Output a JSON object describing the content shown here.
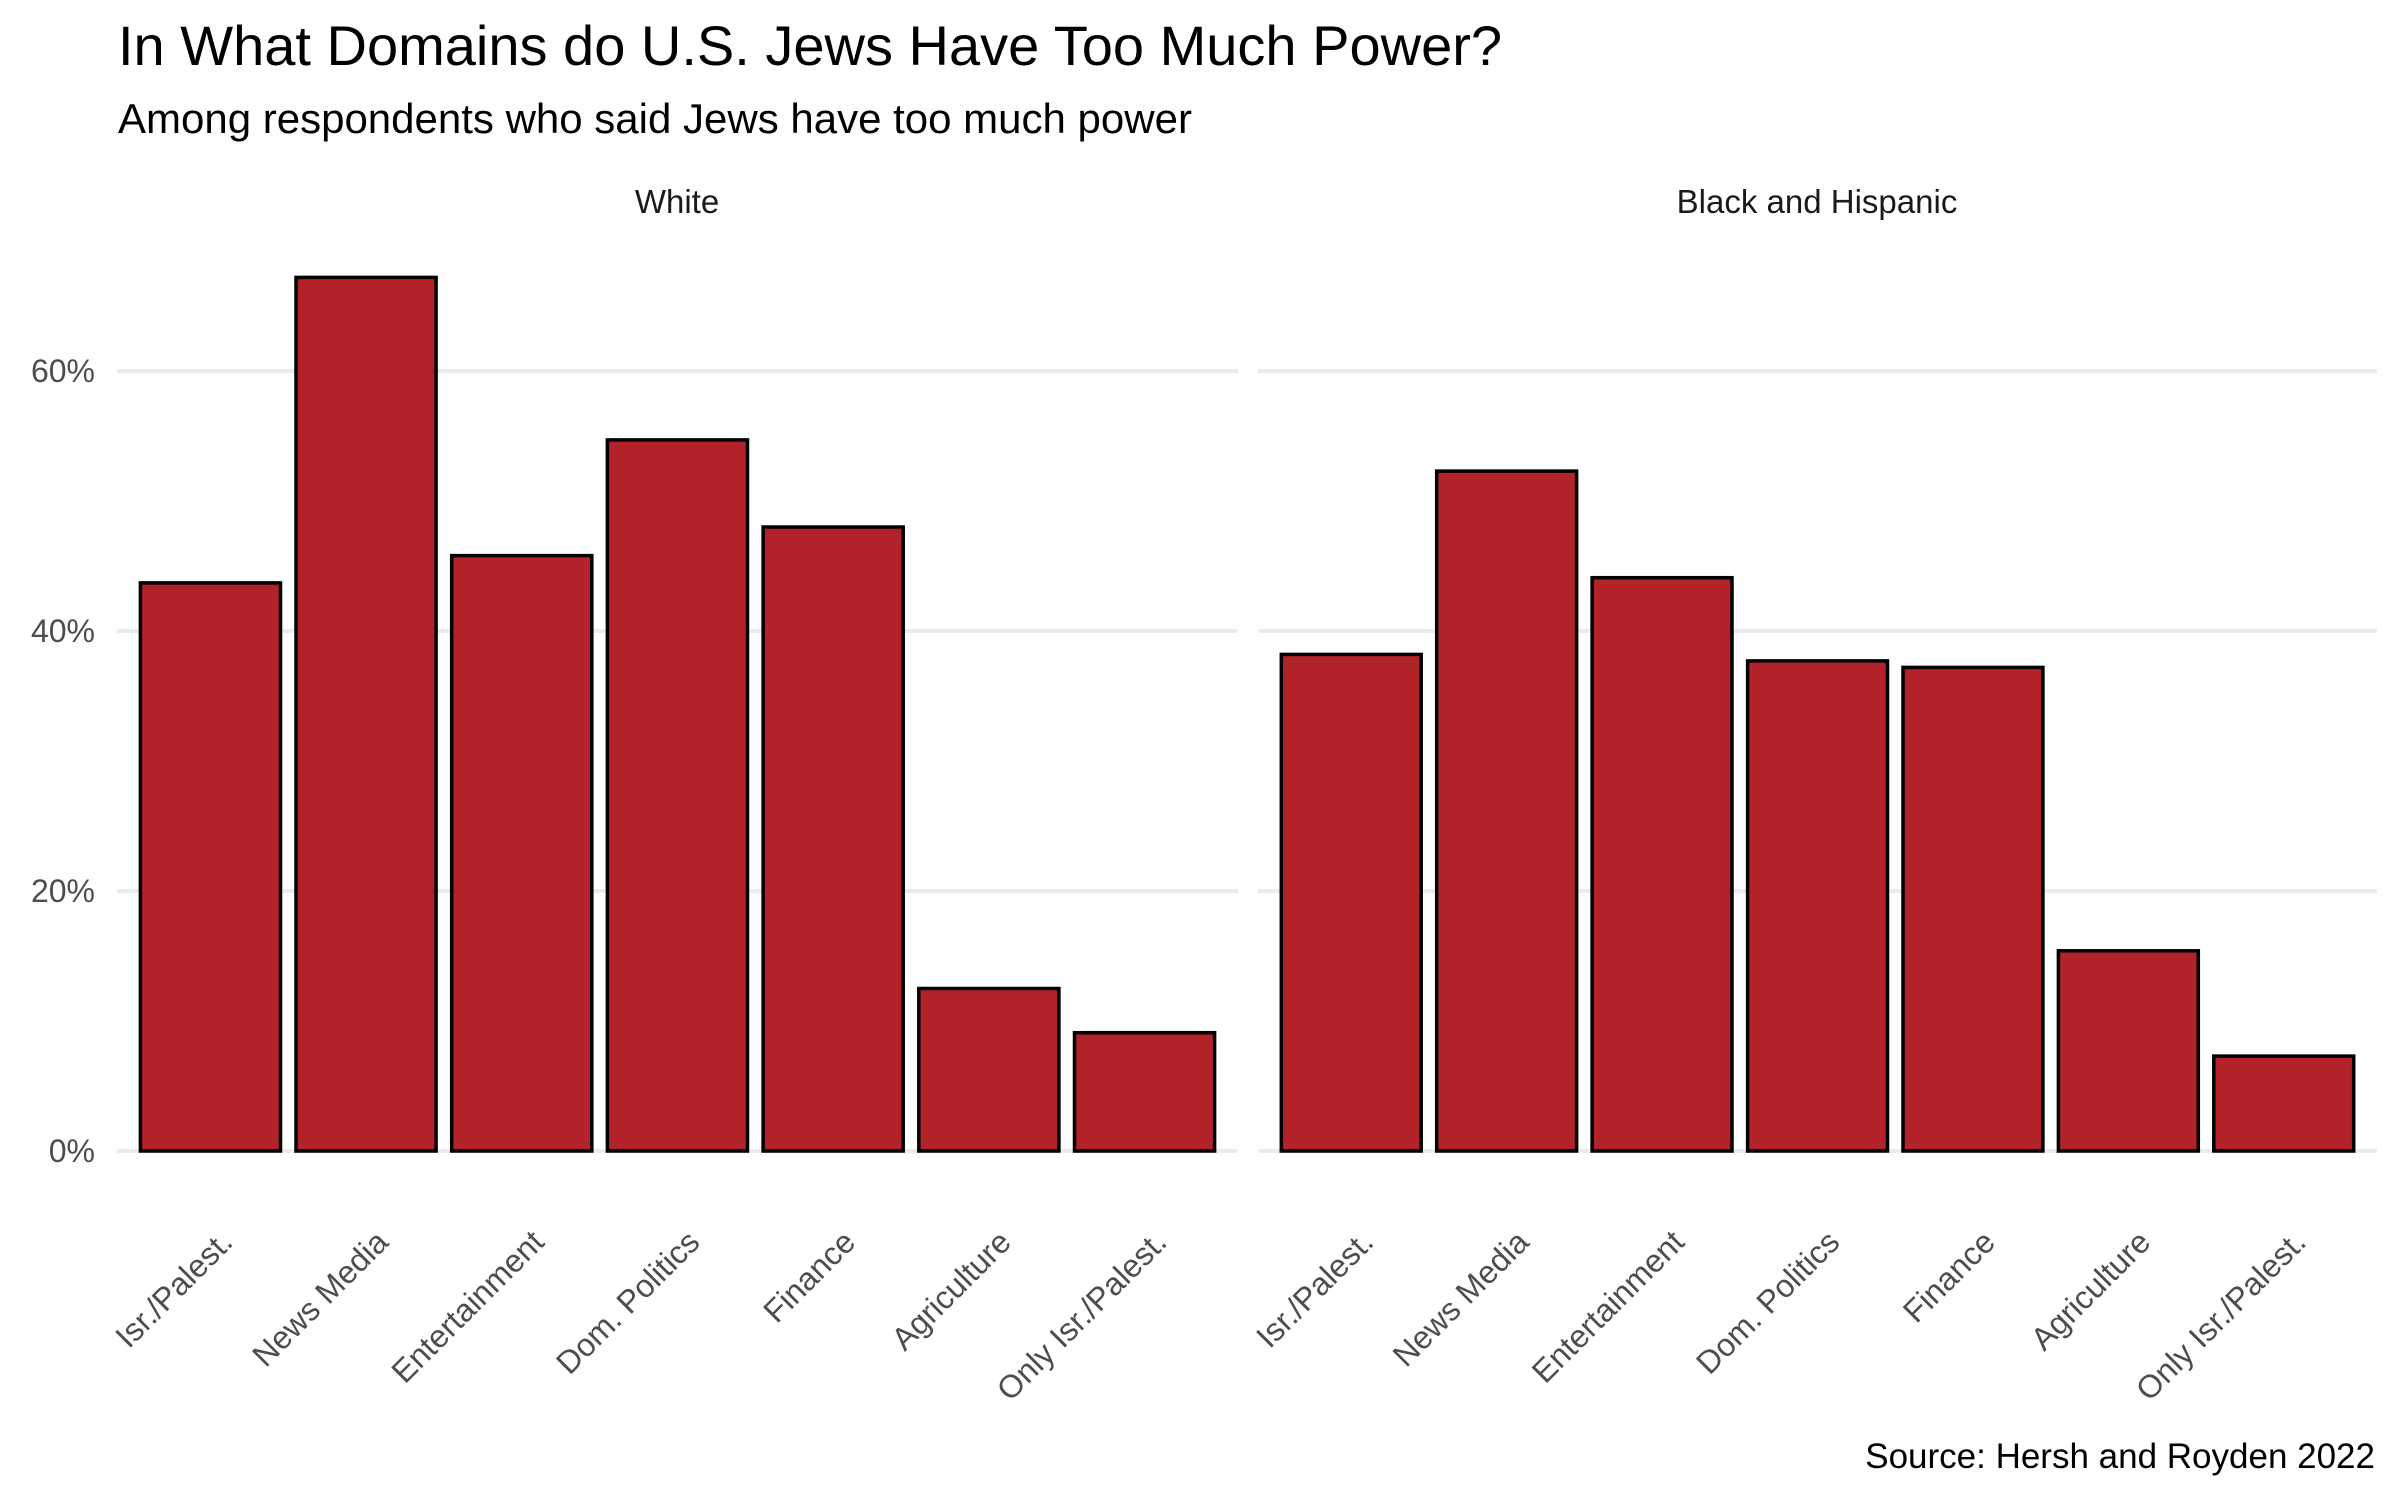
{
  "chart_data": {
    "type": "bar",
    "title": "In What Domains do U.S. Jews Have Too Much Power?",
    "subtitle": "Among respondents who said Jews have too much power",
    "caption": "Source: Hersh and Royden 2022",
    "xlabel": "",
    "ylabel": "",
    "ylim": [
      0,
      70
    ],
    "y_ticks": [
      0,
      20,
      40,
      60
    ],
    "y_tick_labels": [
      "0%",
      "20%",
      "40%",
      "60%"
    ],
    "grid": true,
    "legend": "none",
    "bar_color": "#b22229",
    "bar_outline": "#000000",
    "categories": [
      "Isr./Palest.",
      "News Media",
      "Entertainment",
      "Dom. Politics",
      "Finance",
      "Agriculture",
      "Only Isr./Palest."
    ],
    "facets": [
      {
        "name": "White",
        "values": [
          43.7,
          67.2,
          45.8,
          54.7,
          48.0,
          12.5,
          9.1
        ]
      },
      {
        "name": "Black and Hispanic",
        "values": [
          38.2,
          52.3,
          44.1,
          37.7,
          37.2,
          15.4,
          7.3
        ]
      }
    ]
  }
}
